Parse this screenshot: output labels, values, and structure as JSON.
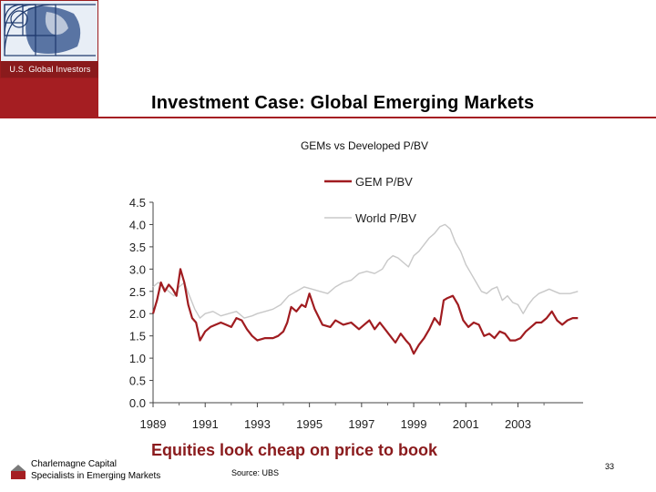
{
  "header": {
    "logo_text": "U.S. Global Investors",
    "title": "Investment Case: Global Emerging Markets"
  },
  "colors": {
    "accent": "#a51e22",
    "gem": "#a01c20",
    "world": "#c8c8c8"
  },
  "chart_data": {
    "type": "line",
    "title": "GEMs vs Developed P/BV",
    "xlabel": "",
    "ylabel": "",
    "xlim": [
      1989,
      2005.5
    ],
    "ylim": [
      0.0,
      4.5
    ],
    "grid": false,
    "legend_position": "top-center",
    "x_ticks": [
      "1989",
      "1991",
      "1993",
      "1995",
      "1997",
      "1999",
      "2001",
      "2003"
    ],
    "y_ticks": [
      "0.0",
      "0.5",
      "1.0",
      "1.5",
      "2.0",
      "2.5",
      "3.0",
      "3.5",
      "4.0",
      "4.5"
    ],
    "series": [
      {
        "name": "GEM P/BV",
        "color": "#a01c20",
        "x": [
          1989.0,
          1989.15,
          1989.3,
          1989.45,
          1989.6,
          1989.75,
          1989.9,
          1990.05,
          1990.2,
          1990.35,
          1990.5,
          1990.65,
          1990.8,
          1991.0,
          1991.2,
          1991.4,
          1991.6,
          1991.8,
          1992.0,
          1992.2,
          1992.4,
          1992.6,
          1992.8,
          1993.0,
          1993.3,
          1993.6,
          1993.8,
          1994.0,
          1994.15,
          1994.3,
          1994.5,
          1994.7,
          1994.85,
          1995.0,
          1995.2,
          1995.5,
          1995.8,
          1996.0,
          1996.3,
          1996.6,
          1996.9,
          1997.1,
          1997.3,
          1997.5,
          1997.7,
          1997.9,
          1998.1,
          1998.3,
          1998.5,
          1998.7,
          1998.85,
          1999.0,
          1999.2,
          1999.4,
          1999.6,
          1999.8,
          2000.0,
          2000.15,
          2000.3,
          2000.5,
          2000.7,
          2000.9,
          2001.1,
          2001.3,
          2001.5,
          2001.7,
          2001.9,
          2002.1,
          2002.3,
          2002.5,
          2002.7,
          2002.9,
          2003.1,
          2003.3,
          2003.5,
          2003.7,
          2003.9,
          2004.1,
          2004.3,
          2004.5,
          2004.7,
          2004.9,
          2005.1,
          2005.3
        ],
        "values": [
          2.0,
          2.3,
          2.7,
          2.5,
          2.65,
          2.55,
          2.4,
          3.0,
          2.7,
          2.2,
          1.9,
          1.8,
          1.4,
          1.6,
          1.7,
          1.75,
          1.8,
          1.75,
          1.7,
          1.9,
          1.85,
          1.65,
          1.5,
          1.4,
          1.45,
          1.45,
          1.5,
          1.6,
          1.8,
          2.15,
          2.05,
          2.2,
          2.15,
          2.45,
          2.1,
          1.75,
          1.7,
          1.85,
          1.75,
          1.8,
          1.65,
          1.75,
          1.85,
          1.65,
          1.8,
          1.65,
          1.5,
          1.35,
          1.55,
          1.4,
          1.3,
          1.1,
          1.3,
          1.45,
          1.65,
          1.9,
          1.75,
          2.3,
          2.35,
          2.4,
          2.2,
          1.85,
          1.7,
          1.8,
          1.75,
          1.5,
          1.55,
          1.45,
          1.6,
          1.55,
          1.4,
          1.4,
          1.45,
          1.6,
          1.7,
          1.8,
          1.8,
          1.9,
          2.05,
          1.85,
          1.75,
          1.85,
          1.9,
          1.9
        ]
      },
      {
        "name": "World P/BV",
        "color": "#c8c8c8",
        "x": [
          1989.0,
          1989.2,
          1989.4,
          1989.6,
          1989.8,
          1990.0,
          1990.2,
          1990.4,
          1990.6,
          1990.8,
          1991.0,
          1991.3,
          1991.6,
          1991.9,
          1992.2,
          1992.5,
          1992.8,
          1993.0,
          1993.3,
          1993.6,
          1993.9,
          1994.2,
          1994.5,
          1994.8,
          1995.1,
          1995.4,
          1995.7,
          1996.0,
          1996.3,
          1996.6,
          1996.9,
          1997.2,
          1997.5,
          1997.8,
          1998.0,
          1998.2,
          1998.4,
          1998.6,
          1998.8,
          1999.0,
          1999.2,
          1999.4,
          1999.6,
          1999.8,
          2000.0,
          2000.2,
          2000.4,
          2000.6,
          2000.8,
          2001.0,
          2001.2,
          2001.4,
          2001.6,
          2001.8,
          2002.0,
          2002.2,
          2002.4,
          2002.6,
          2002.8,
          2003.0,
          2003.2,
          2003.4,
          2003.6,
          2003.8,
          2004.0,
          2004.2,
          2004.4,
          2004.6,
          2004.8,
          2005.0,
          2005.3
        ],
        "values": [
          2.6,
          2.7,
          2.6,
          2.5,
          2.4,
          2.6,
          2.7,
          2.4,
          2.1,
          1.9,
          2.0,
          2.05,
          1.95,
          2.0,
          2.05,
          1.9,
          1.95,
          2.0,
          2.05,
          2.1,
          2.2,
          2.4,
          2.5,
          2.6,
          2.55,
          2.5,
          2.45,
          2.6,
          2.7,
          2.75,
          2.9,
          2.95,
          2.9,
          3.0,
          3.2,
          3.3,
          3.25,
          3.15,
          3.05,
          3.3,
          3.4,
          3.55,
          3.7,
          3.8,
          3.95,
          4.0,
          3.9,
          3.6,
          3.4,
          3.1,
          2.9,
          2.7,
          2.5,
          2.45,
          2.55,
          2.6,
          2.3,
          2.4,
          2.25,
          2.2,
          2.0,
          2.2,
          2.35,
          2.45,
          2.5,
          2.55,
          2.5,
          2.45,
          2.45,
          2.45,
          2.5
        ]
      }
    ]
  },
  "headline": "Equities look cheap on price to book",
  "footer": {
    "brand_line1": "Charlemagne Capital",
    "brand_line2": "Specialists in Emerging Markets",
    "source": "Source:  UBS",
    "page_number": "33"
  }
}
